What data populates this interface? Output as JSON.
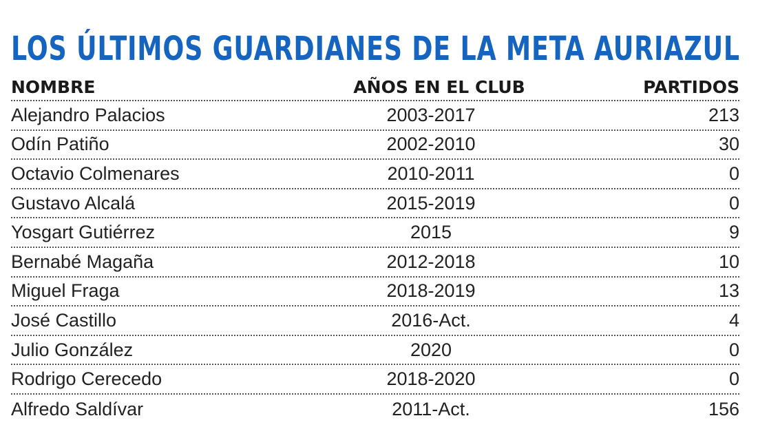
{
  "title": "LOS ÚLTIMOS GUARDIANES DE LA META AURIAZUL",
  "colors": {
    "title": "#1565c0",
    "text": "#222222",
    "rule": "#555555"
  },
  "table": {
    "headers": {
      "name": "NOMBRE",
      "years": "AÑOS EN EL CLUB",
      "games": "PARTIDOS"
    },
    "rows": [
      {
        "name": "Alejandro Palacios",
        "years": "2003-2017",
        "games": "213"
      },
      {
        "name": "Odín Patiño",
        "years": "2002-2010",
        "games": "30"
      },
      {
        "name": "Octavio Colmenares",
        "years": "2010-2011",
        "games": "0"
      },
      {
        "name": "Gustavo Alcalá",
        "years": "2015-2019",
        "games": "0"
      },
      {
        "name": "Yosgart Gutiérrez",
        "years": "2015",
        "games": "9"
      },
      {
        "name": "Bernabé Magaña",
        "years": "2012-2018",
        "games": "10"
      },
      {
        "name": "Miguel Fraga",
        "years": "2018-2019",
        "games": "13"
      },
      {
        "name": "José Castillo",
        "years": "2016-Act.",
        "games": "4"
      },
      {
        "name": "Julio González",
        "years": "2020",
        "games": "0"
      },
      {
        "name": "Rodrigo Cerecedo",
        "years": "2018-2020",
        "games": "0"
      },
      {
        "name": "Alfredo Saldívar",
        "years": "2011-Act.",
        "games": "156"
      }
    ]
  }
}
